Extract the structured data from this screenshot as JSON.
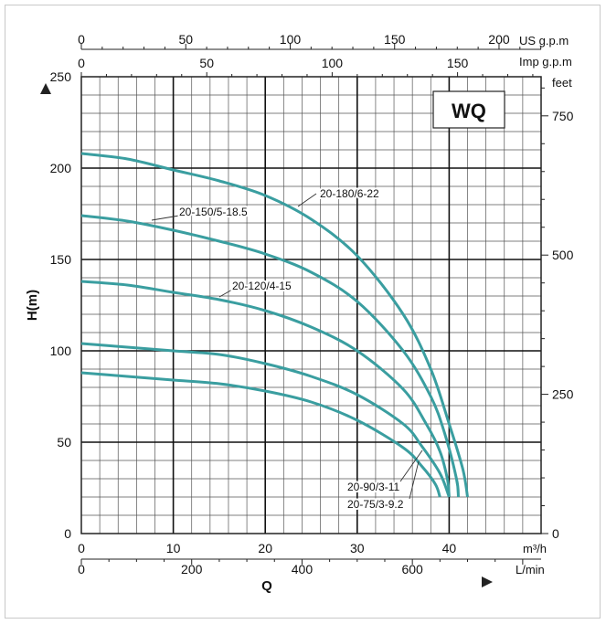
{
  "chart_data": {
    "type": "line",
    "badge": "WQ",
    "ylabel": "H(m)",
    "xlabel": "Q",
    "units": {
      "us_gpm": "US g.p.m",
      "imp_gpm": "Imp g.p.m",
      "feet": "feet",
      "m3h": "m³/h",
      "lmin": "L/min"
    },
    "xlim": [
      0,
      50
    ],
    "ylim": [
      0,
      250
    ],
    "x_ticks_m3h": [
      0,
      10,
      20,
      30,
      40
    ],
    "y_ticks_m": [
      0,
      50,
      100,
      150,
      200,
      250
    ],
    "ticks_lmin": [
      0,
      200,
      400,
      600
    ],
    "ticks_us_gpm": [
      0,
      50,
      100,
      150,
      200
    ],
    "ticks_imp_gpm": [
      0,
      50,
      100,
      150
    ],
    "ticks_feet": [
      0,
      250,
      500,
      750
    ],
    "series": [
      {
        "name": "20-180/6-22",
        "x": [
          0,
          5,
          10,
          15,
          20,
          25,
          30,
          35,
          38,
          40,
          41.5,
          42
        ],
        "y": [
          208,
          205,
          199,
          193,
          185,
          172,
          152,
          120,
          90,
          60,
          35,
          20
        ]
      },
      {
        "name": "20-150/5-18.5",
        "x": [
          0,
          5,
          10,
          15,
          20,
          25,
          30,
          35,
          38,
          39.5,
          40.8,
          41
        ],
        "y": [
          174,
          171,
          166,
          160,
          153,
          143,
          127,
          100,
          75,
          55,
          30,
          20
        ]
      },
      {
        "name": "20-120/4-15",
        "x": [
          0,
          5,
          10,
          15,
          20,
          25,
          30,
          35,
          37.5,
          39,
          39.8,
          40
        ],
        "y": [
          138,
          136,
          132,
          128,
          122,
          113,
          100,
          79,
          60,
          45,
          30,
          20
        ]
      },
      {
        "name": "20-90/3-11",
        "x": [
          0,
          5,
          10,
          15,
          20,
          25,
          30,
          35,
          37,
          39,
          40
        ],
        "y": [
          104,
          102,
          100,
          98,
          93,
          86,
          76,
          60,
          48,
          33,
          20
        ]
      },
      {
        "name": "20-75/3-9.2",
        "x": [
          0,
          5,
          10,
          15,
          20,
          25,
          30,
          35,
          37,
          38.5,
          39
        ],
        "y": [
          88,
          86,
          84,
          82,
          78,
          72,
          62,
          47,
          37,
          27,
          20
        ]
      }
    ],
    "series_color": "#3a9ea0",
    "grid": true
  }
}
